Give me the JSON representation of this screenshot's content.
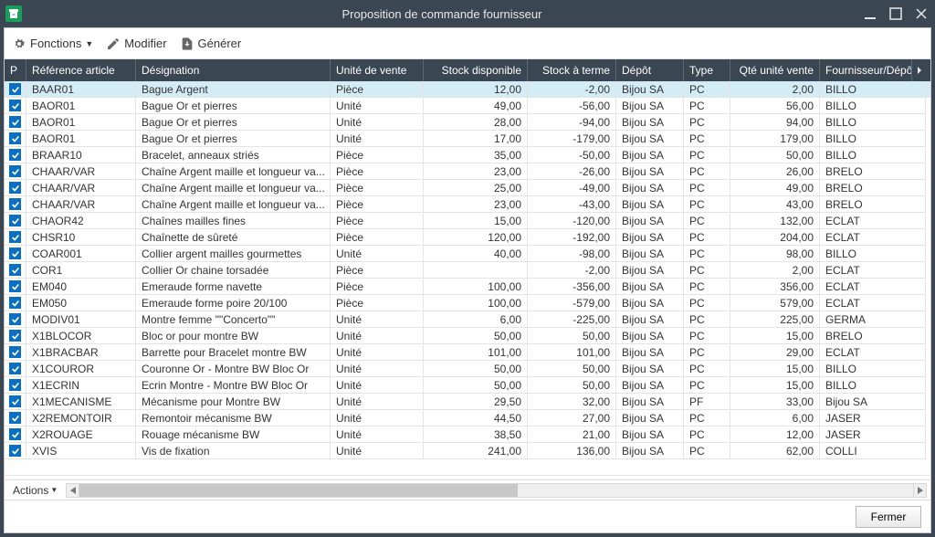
{
  "window": {
    "title": "Proposition de commande fournisseur"
  },
  "toolbar": {
    "fonctions": "Fonctions",
    "modifier": "Modifier",
    "generer": "Générer"
  },
  "columns": {
    "p": "P",
    "ref": "Référence article",
    "des": "Désignation",
    "uv": "Unité de vente",
    "sd": "Stock disponible",
    "st": "Stock à terme",
    "dep": "Dépôt",
    "typ": "Type",
    "qv": "Qté unité vente",
    "fd": "Fournisseur/Dépôt..."
  },
  "rows": [
    {
      "sel": true,
      "ref": "BAAR01",
      "des": "Bague Argent",
      "uv": "Pièce",
      "sd": "12,00",
      "st": "-2,00",
      "dep": "Bijou SA",
      "typ": "PC",
      "qv": "2,00",
      "fd": "BILLO"
    },
    {
      "ref": "BAOR01",
      "des": "Bague Or et pierres",
      "uv": "Unité",
      "sd": "49,00",
      "st": "-56,00",
      "dep": "Bijou SA",
      "typ": "PC",
      "qv": "56,00",
      "fd": "BILLO"
    },
    {
      "ref": "BAOR01",
      "des": "Bague Or et pierres",
      "uv": "Unité",
      "sd": "28,00",
      "st": "-94,00",
      "dep": "Bijou SA",
      "typ": "PC",
      "qv": "94,00",
      "fd": "BILLO"
    },
    {
      "ref": "BAOR01",
      "des": "Bague Or et pierres",
      "uv": "Unité",
      "sd": "17,00",
      "st": "-179,00",
      "dep": "Bijou SA",
      "typ": "PC",
      "qv": "179,00",
      "fd": "BILLO"
    },
    {
      "ref": "BRAAR10",
      "des": "Bracelet, anneaux striés",
      "uv": "Pièce",
      "sd": "35,00",
      "st": "-50,00",
      "dep": "Bijou SA",
      "typ": "PC",
      "qv": "50,00",
      "fd": "BILLO"
    },
    {
      "ref": "CHAAR/VAR",
      "des": "Chaîne Argent maille et longueur va...",
      "uv": "Pièce",
      "sd": "23,00",
      "st": "-26,00",
      "dep": "Bijou SA",
      "typ": "PC",
      "qv": "26,00",
      "fd": "BRELO"
    },
    {
      "ref": "CHAAR/VAR",
      "des": "Chaîne Argent maille et longueur va...",
      "uv": "Pièce",
      "sd": "25,00",
      "st": "-49,00",
      "dep": "Bijou SA",
      "typ": "PC",
      "qv": "49,00",
      "fd": "BRELO"
    },
    {
      "ref": "CHAAR/VAR",
      "des": "Chaîne Argent maille et longueur va...",
      "uv": "Pièce",
      "sd": "23,00",
      "st": "-43,00",
      "dep": "Bijou SA",
      "typ": "PC",
      "qv": "43,00",
      "fd": "BRELO"
    },
    {
      "ref": "CHAOR42",
      "des": "Chaînes mailles fines",
      "uv": "Pièce",
      "sd": "15,00",
      "st": "-120,00",
      "dep": "Bijou SA",
      "typ": "PC",
      "qv": "132,00",
      "fd": "ECLAT"
    },
    {
      "ref": "CHSR10",
      "des": "Chaînette de sûreté",
      "uv": "Pièce",
      "sd": "120,00",
      "st": "-192,00",
      "dep": "Bijou SA",
      "typ": "PC",
      "qv": "204,00",
      "fd": "ECLAT"
    },
    {
      "ref": "COAR001",
      "des": "Collier argent mailles gourmettes",
      "uv": "Unité",
      "sd": "40,00",
      "st": "-98,00",
      "dep": "Bijou SA",
      "typ": "PC",
      "qv": "98,00",
      "fd": "BILLO"
    },
    {
      "ref": "COR1",
      "des": "Collier Or chaine torsadée",
      "uv": "Pièce",
      "sd": "",
      "st": "-2,00",
      "dep": "Bijou SA",
      "typ": "PC",
      "qv": "2,00",
      "fd": "ECLAT"
    },
    {
      "ref": "EM040",
      "des": "Emeraude forme navette",
      "uv": "Pièce",
      "sd": "100,00",
      "st": "-356,00",
      "dep": "Bijou SA",
      "typ": "PC",
      "qv": "356,00",
      "fd": "ECLAT"
    },
    {
      "ref": "EM050",
      "des": "Emeraude forme poire 20/100",
      "uv": "Pièce",
      "sd": "100,00",
      "st": "-579,00",
      "dep": "Bijou SA",
      "typ": "PC",
      "qv": "579,00",
      "fd": "ECLAT"
    },
    {
      "ref": "MODIV01",
      "des": "Montre femme \"\"Concerto\"\"",
      "uv": "Unité",
      "sd": "6,00",
      "st": "-225,00",
      "dep": "Bijou SA",
      "typ": "PC",
      "qv": "225,00",
      "fd": "GERMA"
    },
    {
      "ref": "X1BLOCOR",
      "des": "Bloc or pour montre BW",
      "uv": "Unité",
      "sd": "50,00",
      "st": "50,00",
      "dep": "Bijou SA",
      "typ": "PC",
      "qv": "15,00",
      "fd": "BRELO"
    },
    {
      "ref": "X1BRACBAR",
      "des": "Barrette pour Bracelet montre BW",
      "uv": "Unité",
      "sd": "101,00",
      "st": "101,00",
      "dep": "Bijou SA",
      "typ": "PC",
      "qv": "29,00",
      "fd": "ECLAT"
    },
    {
      "ref": "X1COUROR",
      "des": "Couronne Or - Montre BW Bloc Or",
      "uv": "Unité",
      "sd": "50,00",
      "st": "50,00",
      "dep": "Bijou SA",
      "typ": "PC",
      "qv": "15,00",
      "fd": "BILLO"
    },
    {
      "ref": "X1ECRIN",
      "des": "Ecrin Montre - Montre BW Bloc Or",
      "uv": "Unité",
      "sd": "50,00",
      "st": "50,00",
      "dep": "Bijou SA",
      "typ": "PC",
      "qv": "15,00",
      "fd": "BILLO"
    },
    {
      "ref": "X1MECANISME",
      "des": "Mécanisme pour Montre BW",
      "uv": "Unité",
      "sd": "29,50",
      "st": "32,00",
      "dep": "Bijou SA",
      "typ": "PF",
      "qv": "33,00",
      "fd": "Bijou SA"
    },
    {
      "ref": "X2REMONTOIR",
      "des": "Remontoir mécanisme BW",
      "uv": "Unité",
      "sd": "44,50",
      "st": "27,00",
      "dep": "Bijou SA",
      "typ": "PC",
      "qv": "6,00",
      "fd": "JASER"
    },
    {
      "ref": "X2ROUAGE",
      "des": "Rouage mécanisme BW",
      "uv": "Unité",
      "sd": "38,50",
      "st": "21,00",
      "dep": "Bijou SA",
      "typ": "PC",
      "qv": "12,00",
      "fd": "JASER"
    },
    {
      "ref": "XVIS",
      "des": "Vis de fixation",
      "uv": "Unité",
      "sd": "241,00",
      "st": "136,00",
      "dep": "Bijou SA",
      "typ": "PC",
      "qv": "62,00",
      "fd": "COLLI"
    }
  ],
  "footer": {
    "actions": "Actions",
    "fermer": "Fermer"
  },
  "colors": {
    "titlebar_bg": "#3a4652",
    "header_bg": "#3a4652",
    "selected_row_bg": "#d4ecf5",
    "checkbox_bg": "#0a6fc2",
    "app_icon_bg": "#1a9e5c"
  }
}
